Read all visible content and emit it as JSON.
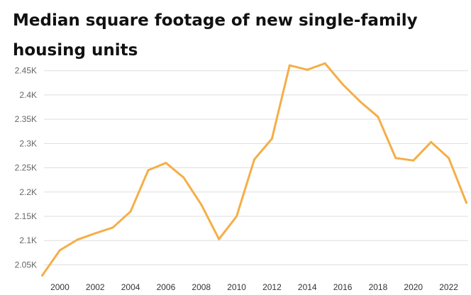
{
  "chart_data": {
    "type": "line",
    "title": "Median square footage of new single-family housing units",
    "xlabel": "",
    "ylabel": "",
    "line_color": "#F5AE47",
    "grid_color": "#DDDDDD",
    "grid": true,
    "legend": "none",
    "xlim": [
      1999.1,
      2023.1
    ],
    "ylim": [
      2020,
      2470
    ],
    "x_ticks": [
      2000,
      2002,
      2004,
      2006,
      2008,
      2010,
      2012,
      2014,
      2016,
      2018,
      2020,
      2022
    ],
    "y_ticks": [
      {
        "value": 2050,
        "label": "2.05K"
      },
      {
        "value": 2100,
        "label": "2.1K"
      },
      {
        "value": 2150,
        "label": "2.15K"
      },
      {
        "value": 2200,
        "label": "2.2K"
      },
      {
        "value": 2250,
        "label": "2.25K"
      },
      {
        "value": 2300,
        "label": "2.3K"
      },
      {
        "value": 2350,
        "label": "2.35K"
      },
      {
        "value": 2400,
        "label": "2.4K"
      },
      {
        "value": 2450,
        "label": "2.45K"
      }
    ],
    "x": [
      1999,
      2000,
      2001,
      2002,
      2003,
      2004,
      2005,
      2006,
      2007,
      2008,
      2009,
      2010,
      2011,
      2012,
      2013,
      2014,
      2015,
      2016,
      2017,
      2018,
      2019,
      2020,
      2021,
      2022,
      2023
    ],
    "values": [
      2028,
      2080,
      2102,
      2115,
      2127,
      2160,
      2245,
      2260,
      2230,
      2174,
      2103,
      2150,
      2267,
      2310,
      2461,
      2452,
      2465,
      2422,
      2386,
      2355,
      2270,
      2265,
      2303,
      2270,
      2178
    ]
  }
}
